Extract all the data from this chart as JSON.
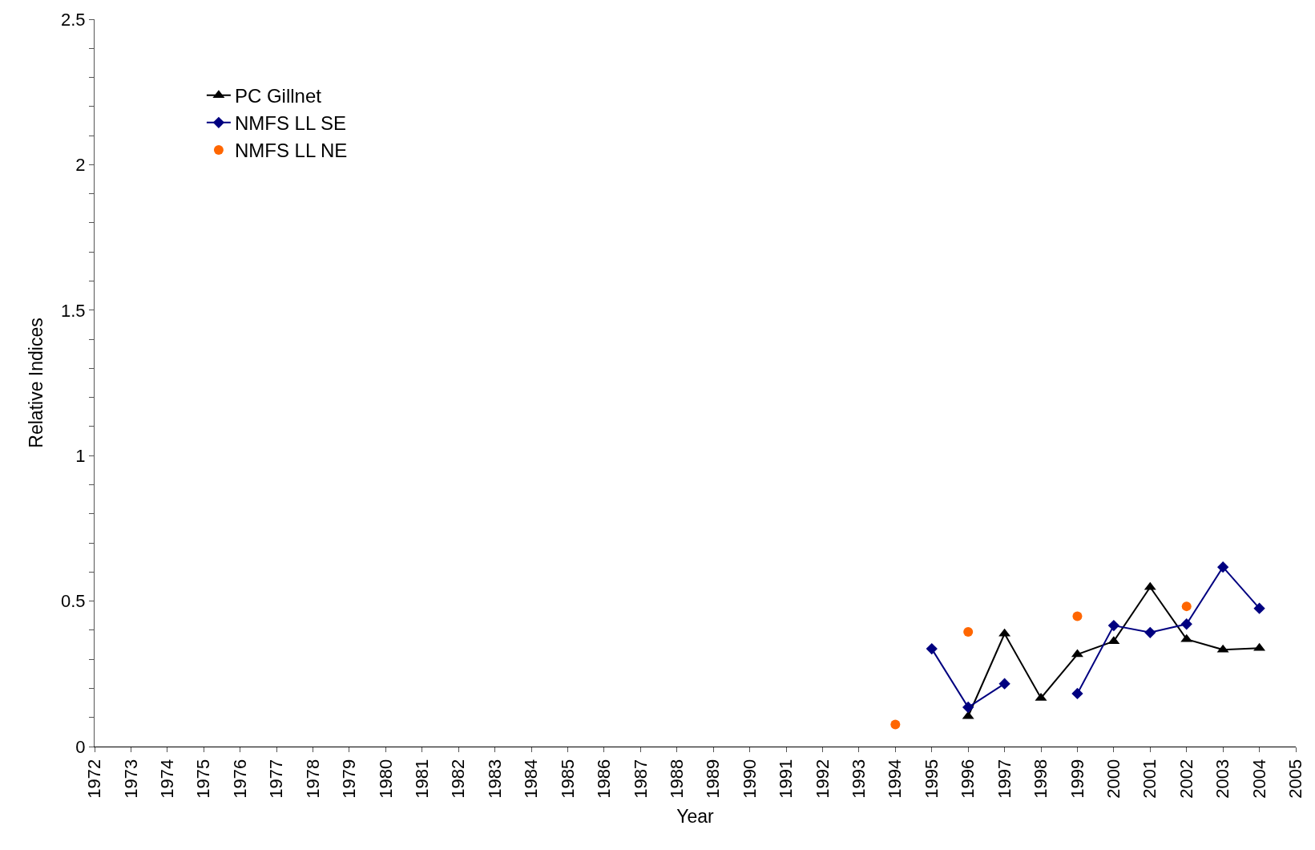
{
  "chart_data": {
    "type": "line",
    "xlabel": "Year",
    "ylabel": "Relative Indices",
    "x": [
      1994,
      1995,
      1996,
      1997,
      1998,
      1999,
      2000,
      2001,
      2002,
      2003,
      2004
    ],
    "series": [
      {
        "name": "PC Gillnet",
        "color": "#000000",
        "marker": "triangle",
        "values": [
          null,
          null,
          0.104,
          0.388,
          0.167,
          0.317,
          0.362,
          0.548,
          0.369,
          0.333,
          0.338
        ]
      },
      {
        "name": "NMFS LL SE",
        "color": "#000080",
        "marker": "diamond",
        "values": [
          null,
          0.336,
          0.135,
          0.216,
          null,
          0.182,
          0.416,
          0.392,
          0.421,
          0.617,
          0.475
        ]
      },
      {
        "name": "NMFS LL NE",
        "color": "#ff6600",
        "marker": "circle",
        "type": "scatter",
        "values": [
          0.076,
          null,
          0.394,
          null,
          null,
          0.448,
          null,
          null,
          0.482,
          null,
          null
        ]
      }
    ],
    "xlim": [
      1972,
      2005
    ],
    "xticks": [
      1972,
      1973,
      1974,
      1975,
      1976,
      1977,
      1978,
      1979,
      1980,
      1981,
      1982,
      1983,
      1984,
      1985,
      1986,
      1987,
      1988,
      1989,
      1990,
      1991,
      1992,
      1993,
      1994,
      1995,
      1996,
      1997,
      1998,
      1999,
      2000,
      2001,
      2002,
      2003,
      2004,
      2005
    ],
    "ylim": [
      0,
      2.5
    ],
    "yticks": [
      0,
      {
        "value": 0.1,
        "label": null
      },
      {
        "value": 0.2,
        "label": null
      },
      {
        "value": 0.3,
        "label": null
      },
      {
        "value": 0.4,
        "label": null
      },
      0.5,
      {
        "value": 0.6,
        "label": null
      },
      {
        "value": 0.7,
        "label": null
      },
      {
        "value": 0.8,
        "label": null
      },
      {
        "value": 0.9,
        "label": null
      },
      1,
      {
        "value": 1.1,
        "label": null
      },
      {
        "value": 1.2,
        "label": null
      },
      {
        "value": 1.3,
        "label": null
      },
      {
        "value": 1.4,
        "label": null
      },
      1.5,
      {
        "value": 1.6,
        "label": null
      },
      {
        "value": 1.7,
        "label": null
      },
      {
        "value": 1.8,
        "label": null
      },
      {
        "value": 1.9,
        "label": null
      },
      2,
      {
        "value": 2.1,
        "label": null
      },
      {
        "value": 2.2,
        "label": null
      },
      {
        "value": 2.3,
        "label": null
      },
      {
        "value": 2.4,
        "label": null
      },
      2.5
    ],
    "legend": "top left",
    "line_style": "solid"
  }
}
